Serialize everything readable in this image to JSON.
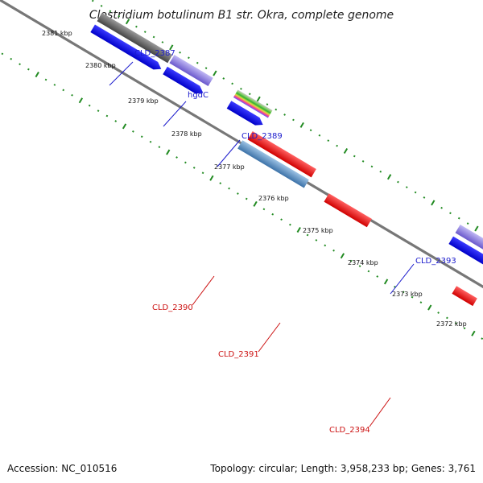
{
  "title": "Clostridium botulinum B1 str. Okra, complete genome",
  "footer": {
    "accession": "Accession: NC_010516",
    "topology": "Topology: circular; Length: 3,958,233 bp; Genes: 3,761"
  },
  "colors": {
    "backbone": "#777777",
    "tick": "#228B22",
    "blue_label": "#1a1acc",
    "red_label": "#cc1111"
  },
  "scale": [
    {
      "label": "2381 kbp"
    },
    {
      "label": "2380 kbp"
    },
    {
      "label": "2379 kbp"
    },
    {
      "label": "2378 kbp"
    },
    {
      "label": "2377 kbp"
    },
    {
      "label": "2376 kbp"
    },
    {
      "label": "2375 kbp"
    },
    {
      "label": "2374 kbp"
    },
    {
      "label": "2373 kbp"
    },
    {
      "label": "2372 kbp"
    }
  ],
  "gene_labels": [
    {
      "text": "CLD_2387",
      "strand": "forward"
    },
    {
      "text": "hgdC",
      "strand": "forward"
    },
    {
      "text": "CLD_2389",
      "strand": "forward"
    },
    {
      "text": "CLD_2393",
      "strand": "forward"
    },
    {
      "text": "CLD_2390",
      "strand": "reverse"
    },
    {
      "text": "CLD_2391",
      "strand": "reverse"
    },
    {
      "text": "CLD_2394",
      "strand": "reverse"
    }
  ]
}
